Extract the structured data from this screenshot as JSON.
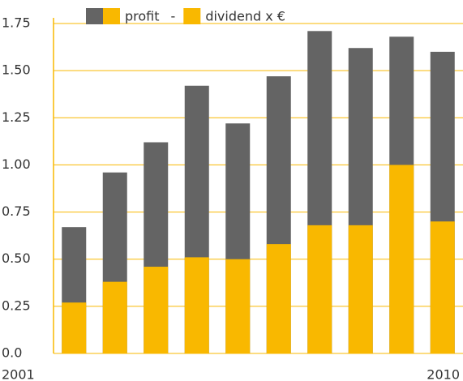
{
  "chart_data": {
    "type": "bar",
    "categories": [
      "2001",
      null,
      null,
      null,
      null,
      null,
      null,
      null,
      null,
      "2010"
    ],
    "series": [
      {
        "name": "profit",
        "color": "#646464",
        "values": [
          0.67,
          0.96,
          1.12,
          1.42,
          1.22,
          1.47,
          1.71,
          1.62,
          1.68,
          1.6
        ]
      },
      {
        "name": "dividend x €",
        "color": "#f9b800",
        "values": [
          0.27,
          0.38,
          0.46,
          0.51,
          0.5,
          0.58,
          0.68,
          0.68,
          1.0,
          0.7
        ]
      }
    ],
    "legend_separator": "-",
    "ylim": [
      0,
      1.75
    ],
    "yticks": [
      {
        "value": 0,
        "label": "0.0"
      },
      0.25,
      {
        "value": 0.5,
        "label": "0.50"
      },
      0.75,
      {
        "value": 1,
        "label": "1.00"
      },
      1.25,
      {
        "value": 1.5,
        "label": "1.50"
      },
      1.75
    ],
    "grid": true
  }
}
